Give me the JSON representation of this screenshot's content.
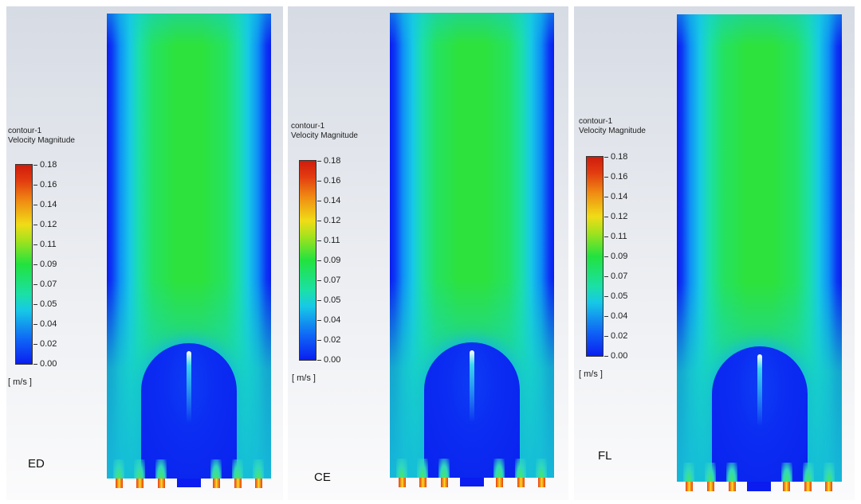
{
  "chart_data": [
    {
      "type": "heatmap",
      "case_label": "ED",
      "legend": {
        "title_line1": "contour-1",
        "title_line2": "Velocity Magnitude",
        "unit": "[ m/s ]",
        "ticks": [
          "0.18",
          "0.16",
          "0.14",
          "0.12",
          "0.11",
          "0.09",
          "0.07",
          "0.05",
          "0.04",
          "0.02",
          "0.00"
        ]
      },
      "range": [
        0,
        0.18
      ],
      "colormap": [
        "#0a1ef0",
        "#17c9e6",
        "#22e23f",
        "#f1dc17",
        "#cf1c0c"
      ]
    },
    {
      "type": "heatmap",
      "case_label": "CE",
      "legend": {
        "title_line1": "contour-1",
        "title_line2": "Velocity Magnitude",
        "unit": "[ m/s ]",
        "ticks": [
          "0.18",
          "0.16",
          "0.14",
          "0.12",
          "0.11",
          "0.09",
          "0.07",
          "0.05",
          "0.04",
          "0.02",
          "0.00"
        ]
      },
      "range": [
        0,
        0.18
      ],
      "colormap": [
        "#0a1ef0",
        "#17c9e6",
        "#22e23f",
        "#f1dc17",
        "#cf1c0c"
      ]
    },
    {
      "type": "heatmap",
      "case_label": "FL",
      "legend": {
        "title_line1": "contour-1",
        "title_line2": "Velocity Magnitude",
        "unit": "[ m/s ]",
        "ticks": [
          "0.18",
          "0.16",
          "0.14",
          "0.12",
          "0.11",
          "0.09",
          "0.07",
          "0.05",
          "0.04",
          "0.02",
          "0.00"
        ]
      },
      "range": [
        0,
        0.18
      ],
      "colormap": [
        "#0a1ef0",
        "#17c9e6",
        "#22e23f",
        "#f1dc17",
        "#cf1c0c"
      ]
    }
  ]
}
